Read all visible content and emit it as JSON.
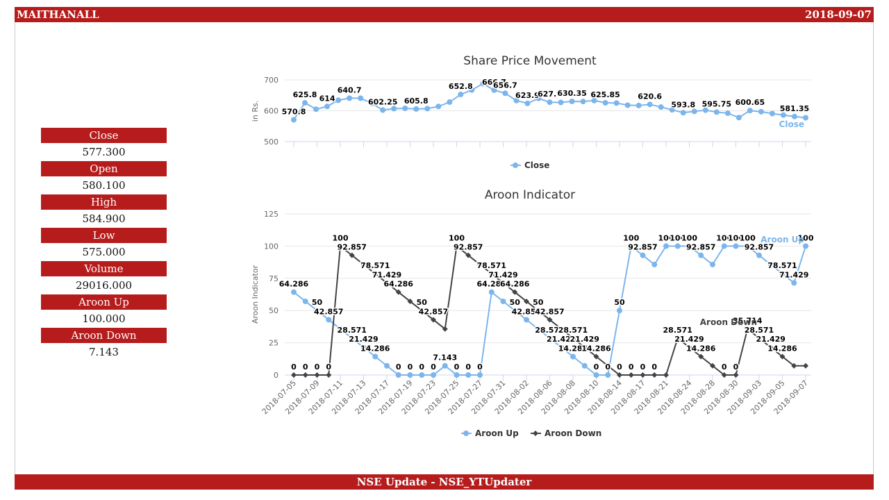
{
  "header": {
    "symbol": "MAITHANALL",
    "date": "2018-09-07"
  },
  "footer": {
    "text": "NSE Update - NSE_YTUpdater"
  },
  "stats": [
    {
      "label": "Close",
      "value": "577.300"
    },
    {
      "label": "Open",
      "value": "580.100"
    },
    {
      "label": "High",
      "value": "584.900"
    },
    {
      "label": "Low",
      "value": "575.000"
    },
    {
      "label": "Volume",
      "value": "29016.000"
    },
    {
      "label": "Aroon Up",
      "value": "100.000"
    },
    {
      "label": "Aroon Down",
      "value": "7.143"
    }
  ],
  "colors": {
    "brand": "#b71c1c",
    "aroon_up": "#7cb5ec",
    "aroon_down": "#434348"
  },
  "chart_data": [
    {
      "type": "line",
      "title": "Share Price Movement",
      "ylabel": "in Rs.",
      "ylim": [
        500,
        700
      ],
      "yticks": [
        500,
        600,
        700
      ],
      "grid": true,
      "legend": "bottom",
      "series": [
        {
          "name": "Close",
          "values": [
            570.8,
            625.8,
            605,
            614,
            634,
            640.7,
            640.7,
            624,
            602.25,
            607,
            608,
            605.8,
            607,
            614,
            628,
            652.8,
            667,
            688,
            666.7,
            656.7,
            633,
            623.9,
            640,
            627.6,
            627,
            630.35,
            630,
            633,
            625.85,
            625,
            618,
            617,
            620.6,
            612,
            603,
            593.8,
            598,
            602,
            595.75,
            592,
            578,
            600.65,
            597,
            591,
            586,
            581.35,
            577.3
          ]
        }
      ],
      "data_labels": [
        {
          "i": 0,
          "text": "570.8"
        },
        {
          "i": 1,
          "text": "625.8"
        },
        {
          "i": 3,
          "text": "614"
        },
        {
          "i": 5,
          "text": "640.7"
        },
        {
          "i": 8,
          "text": "602.25"
        },
        {
          "i": 11,
          "text": "605.8"
        },
        {
          "i": 15,
          "text": "652.8"
        },
        {
          "i": 18,
          "text": "666.7"
        },
        {
          "i": 19,
          "text": "656.7"
        },
        {
          "i": 21,
          "text": "623.9"
        },
        {
          "i": 23,
          "text": "627.6"
        },
        {
          "i": 25,
          "text": "630.35"
        },
        {
          "i": 28,
          "text": "625.85"
        },
        {
          "i": 32,
          "text": "620.6"
        },
        {
          "i": 35,
          "text": "593.8"
        },
        {
          "i": 38,
          "text": "595.75"
        },
        {
          "i": 41,
          "text": "600.65"
        },
        {
          "i": 45,
          "text": "581.35"
        }
      ],
      "series_end_label": "Close"
    },
    {
      "type": "line",
      "title": "Aroon Indicator",
      "ylabel": "Aroon Indicator",
      "ylim": [
        0,
        125
      ],
      "yticks": [
        0,
        25,
        50,
        75,
        100,
        125
      ],
      "grid": true,
      "legend": "bottom",
      "x": [
        "2018-07-05",
        "2018-07-06",
        "2018-07-09",
        "2018-07-10",
        "2018-07-11",
        "2018-07-12",
        "2018-07-13",
        "2018-07-16",
        "2018-07-17",
        "2018-07-18",
        "2018-07-19",
        "2018-07-20",
        "2018-07-23",
        "2018-07-24",
        "2018-07-25",
        "2018-07-26",
        "2018-07-27",
        "2018-07-30",
        "2018-07-31",
        "2018-08-01",
        "2018-08-02",
        "2018-08-03",
        "2018-08-06",
        "2018-08-07",
        "2018-08-08",
        "2018-08-09",
        "2018-08-10",
        "2018-08-13",
        "2018-08-14",
        "2018-08-16",
        "2018-08-17",
        "2018-08-20",
        "2018-08-21",
        "2018-08-23",
        "2018-08-24",
        "2018-08-27",
        "2018-08-28",
        "2018-08-29",
        "2018-08-30",
        "2018-08-31",
        "2018-09-03",
        "2018-09-04",
        "2018-09-05",
        "2018-09-06",
        "2018-09-07"
      ],
      "xtick_labels": [
        "2018-07-05",
        "2018-07-09",
        "2018-07-11",
        "2018-07-13",
        "2018-07-17",
        "2018-07-19",
        "2018-07-23",
        "2018-07-25",
        "2018-07-27",
        "2018-07-31",
        "2018-08-02",
        "2018-08-06",
        "2018-08-08",
        "2018-08-10",
        "2018-08-14",
        "2018-08-17",
        "2018-08-21",
        "2018-08-24",
        "2018-08-28",
        "2018-08-30",
        "2018-09-03",
        "2018-09-05",
        "2018-09-07"
      ],
      "series": [
        {
          "name": "Aroon Up",
          "values": [
            64.286,
            57.143,
            50,
            42.857,
            35.714,
            28.571,
            21.429,
            14.286,
            7.143,
            0,
            0,
            0,
            0,
            7.143,
            0,
            0,
            0,
            64.286,
            57.143,
            50,
            42.857,
            35.714,
            28.571,
            21.429,
            14.286,
            7.143,
            0,
            0,
            50,
            100,
            92.857,
            85.714,
            100,
            100,
            100,
            92.857,
            85.714,
            100,
            100,
            100,
            92.857,
            85.714,
            78.571,
            71.429,
            100
          ],
          "labels": [
            "64.286",
            "",
            "50",
            "42.857",
            "",
            "28.571",
            "21.429",
            "14.286",
            "",
            "0",
            "0",
            "0",
            "0",
            "7.143",
            "0",
            "0",
            "0",
            "64.286",
            "",
            "50",
            "42.857",
            "",
            "28.571",
            "21.429",
            "14.286",
            "",
            "0",
            "0",
            "50",
            "100",
            "92.857",
            "",
            "100",
            "100",
            "100",
            "92.857",
            "",
            "100",
            "100",
            "100",
            "92.857",
            "",
            "78.571",
            "71.429",
            "100"
          ]
        },
        {
          "name": "Aroon Down",
          "values": [
            0,
            0,
            0,
            0,
            100,
            92.857,
            85.714,
            78.571,
            71.429,
            64.286,
            57.143,
            50,
            42.857,
            35.714,
            100,
            92.857,
            85.714,
            78.571,
            71.429,
            64.286,
            57.143,
            50,
            42.857,
            35.714,
            28.571,
            21.429,
            14.286,
            7.143,
            0,
            0,
            0,
            0,
            0,
            28.571,
            21.429,
            14.286,
            7.143,
            0,
            0,
            35.714,
            28.571,
            21.429,
            14.286,
            7.143,
            7.143
          ],
          "labels": [
            "0",
            "0",
            "0",
            "0",
            "100",
            "92.857",
            "",
            "78.571",
            "71.429",
            "64.286",
            "",
            "50",
            "42.857",
            "",
            "100",
            "92.857",
            "",
            "78.571",
            "71.429",
            "64.286",
            "",
            "50",
            "42.857",
            "",
            "28.571",
            "21.429",
            "14.286",
            "",
            "0",
            "0",
            "0",
            "0",
            "",
            "28.571",
            "21.429",
            "14.286",
            "",
            "0",
            "0",
            "35.714",
            "28.571",
            "21.429",
            "14.286",
            "",
            ""
          ]
        }
      ],
      "series_end_labels": [
        "Aroon Up",
        "Aroon Down"
      ]
    }
  ]
}
